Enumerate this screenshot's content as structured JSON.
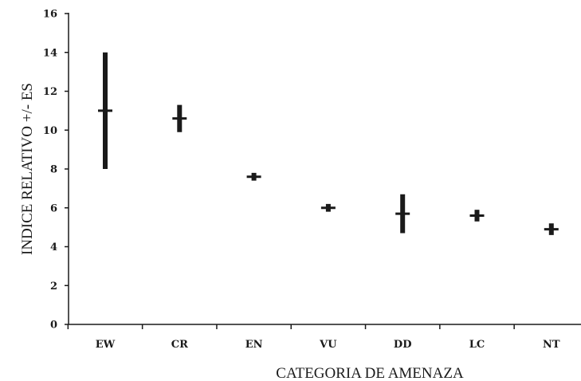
{
  "chart_data": {
    "type": "scatter",
    "title": "",
    "xlabel": "CATEGORIA DE AMENAZA",
    "ylabel": "INDICE RELATIVO +/- ES",
    "ylim": [
      0,
      16
    ],
    "yticks": [
      0,
      2,
      4,
      6,
      8,
      10,
      12,
      14,
      16
    ],
    "categories": [
      "EW",
      "CR",
      "EN",
      "VU",
      "DD",
      "LC",
      "NT"
    ],
    "series": [
      {
        "values": [
          11.0,
          10.6,
          7.6,
          6.0,
          5.7,
          5.6,
          4.9
        ],
        "error": [
          3.0,
          0.7,
          0.2,
          0.2,
          1.0,
          0.3,
          0.3
        ]
      }
    ],
    "grid": false,
    "legend": "none",
    "color": "#1a1a1a"
  }
}
